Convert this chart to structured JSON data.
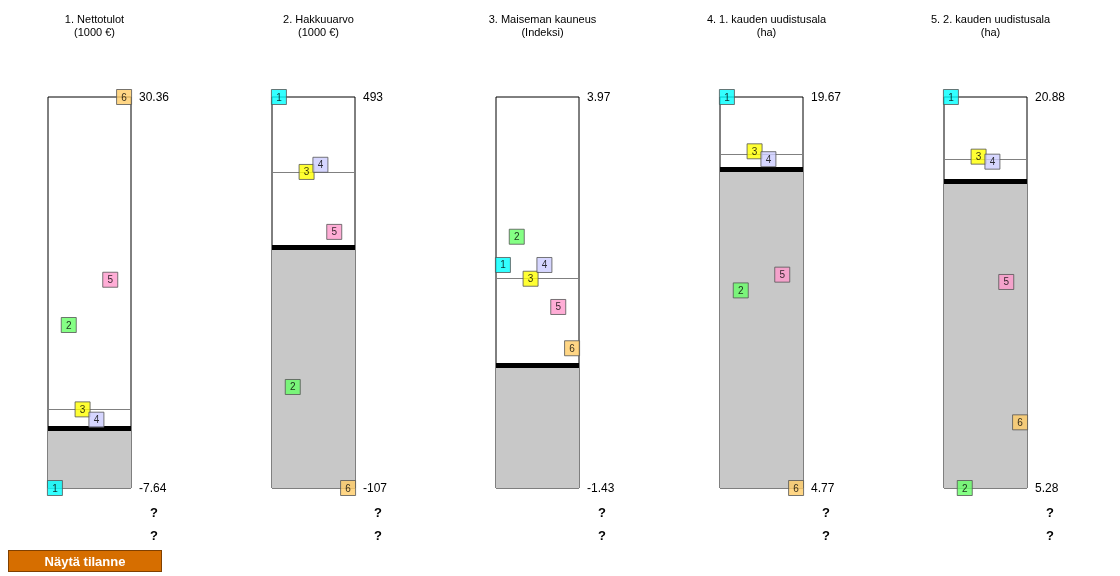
{
  "chart_data": [
    {
      "type": "scatter",
      "title": "1. Nettotulot",
      "subtitle": "(1000 €)",
      "categories": [
        null,
        null,
        null,
        null,
        null,
        null
      ],
      "marker": "square",
      "ylim": [
        -7.64,
        30.36
      ],
      "yticks": [
        -7.64,
        30.36
      ],
      "tick_labels": "y",
      "grid": false,
      "series": [
        {
          "name": "1",
          "color": "#00ffff",
          "values": [
            -7.64,
            null,
            null,
            null,
            null,
            null
          ]
        },
        {
          "name": "2",
          "color": "#66ff66",
          "values": [
            null,
            8.2,
            null,
            null,
            null,
            null
          ]
        },
        {
          "name": "3",
          "color": "#ffff00",
          "values": [
            null,
            null,
            0,
            null,
            null,
            null
          ]
        },
        {
          "name": "4",
          "color": "#ccccff",
          "values": [
            null,
            null,
            null,
            -1,
            null,
            null
          ]
        },
        {
          "name": "5",
          "color": "#ff99cc",
          "values": [
            null,
            null,
            null,
            null,
            12.6,
            null
          ]
        },
        {
          "name": "6",
          "color": "#ffcc66",
          "values": [
            null,
            null,
            null,
            null,
            null,
            30.36
          ]
        }
      ],
      "ref_lines": [
        {
          "axis": "y",
          "value": -1.8,
          "color": "#000000"
        },
        {
          "axis": "y",
          "value": 0,
          "color": "#808080"
        }
      ],
      "bands": [
        {
          "axis": "y",
          "from": -7.64,
          "to": -1.8,
          "color": "#c8c8c8"
        }
      ],
      "annotations": [
        "?",
        "?",
        "Näytä tilanne"
      ]
    },
    {
      "type": "scatter",
      "title": "2. Hakkuuarvo",
      "subtitle": "(1000 €)",
      "categories": [
        null,
        null,
        null,
        null,
        null,
        null
      ],
      "marker": "square",
      "ylim": [
        -107,
        493
      ],
      "yticks": [
        -107,
        493
      ],
      "tick_labels": "y",
      "grid": false,
      "series": [
        {
          "name": "1",
          "color": "#00ffff",
          "values": [
            493,
            null,
            null,
            null,
            null,
            null
          ]
        },
        {
          "name": "2",
          "color": "#66ff66",
          "values": [
            null,
            48,
            null,
            null,
            null,
            null
          ]
        },
        {
          "name": "3",
          "color": "#ffff00",
          "values": [
            null,
            null,
            378,
            null,
            null,
            null
          ]
        },
        {
          "name": "4",
          "color": "#ccccff",
          "values": [
            null,
            null,
            null,
            389,
            null,
            null
          ]
        },
        {
          "name": "5",
          "color": "#ff99cc",
          "values": [
            null,
            null,
            null,
            null,
            286,
            null
          ]
        },
        {
          "name": "6",
          "color": "#ffcc66",
          "values": [
            null,
            null,
            null,
            null,
            null,
            -107
          ]
        }
      ],
      "ref_lines": [
        {
          "axis": "y",
          "value": 263,
          "color": "#000000"
        },
        {
          "axis": "y",
          "value": 378,
          "color": "#808080"
        }
      ],
      "bands": [
        {
          "axis": "y",
          "from": -107,
          "to": 263,
          "color": "#c8c8c8"
        }
      ],
      "annotations": [
        "?",
        "?"
      ]
    },
    {
      "type": "scatter",
      "title": "3. Maiseman kauneus",
      "subtitle": "(Indeksi)",
      "categories": [
        null,
        null,
        null,
        null,
        null,
        null
      ],
      "marker": "square",
      "ylim": [
        -1.43,
        3.97
      ],
      "yticks": [
        -1.43,
        3.97
      ],
      "tick_labels": "y",
      "grid": false,
      "series": [
        {
          "name": "1",
          "color": "#00ffff",
          "values": [
            1.65,
            null,
            null,
            null,
            null,
            null
          ]
        },
        {
          "name": "2",
          "color": "#66ff66",
          "values": [
            null,
            2.04,
            null,
            null,
            null,
            null
          ]
        },
        {
          "name": "3",
          "color": "#ffff00",
          "values": [
            null,
            null,
            1.46,
            null,
            null,
            null
          ]
        },
        {
          "name": "4",
          "color": "#ccccff",
          "values": [
            null,
            null,
            null,
            1.65,
            null,
            null
          ]
        },
        {
          "name": "5",
          "color": "#ff99cc",
          "values": [
            null,
            null,
            null,
            null,
            1.07,
            null
          ]
        },
        {
          "name": "6",
          "color": "#ffcc66",
          "values": [
            null,
            null,
            null,
            null,
            null,
            0.5
          ]
        }
      ],
      "ref_lines": [
        {
          "axis": "y",
          "value": 0.26,
          "color": "#000000"
        },
        {
          "axis": "y",
          "value": 1.46,
          "color": "#808080"
        }
      ],
      "bands": [
        {
          "axis": "y",
          "from": -1.43,
          "to": 0.26,
          "color": "#c8c8c8"
        }
      ],
      "annotations": [
        "?",
        "?"
      ]
    },
    {
      "type": "scatter",
      "title": "4. 1. kauden uudistusala",
      "subtitle": "(ha)",
      "categories": [
        null,
        null,
        null,
        null,
        null,
        null
      ],
      "marker": "square",
      "ylim": [
        4.77,
        19.67
      ],
      "yticks": [
        4.77,
        19.67
      ],
      "tick_labels": "y",
      "grid": false,
      "series": [
        {
          "name": "1",
          "color": "#00ffff",
          "values": [
            19.67,
            null,
            null,
            null,
            null,
            null
          ]
        },
        {
          "name": "2",
          "color": "#66ff66",
          "values": [
            null,
            12.3,
            null,
            null,
            null,
            null
          ]
        },
        {
          "name": "3",
          "color": "#ffff00",
          "values": [
            null,
            null,
            17.6,
            null,
            null,
            null
          ]
        },
        {
          "name": "4",
          "color": "#ccccff",
          "values": [
            null,
            null,
            null,
            17.3,
            null,
            null
          ]
        },
        {
          "name": "5",
          "color": "#ff99cc",
          "values": [
            null,
            null,
            null,
            null,
            12.9,
            null
          ]
        },
        {
          "name": "6",
          "color": "#ffcc66",
          "values": [
            null,
            null,
            null,
            null,
            null,
            4.77
          ]
        }
      ],
      "ref_lines": [
        {
          "axis": "y",
          "value": 16.9,
          "color": "#000000"
        },
        {
          "axis": "y",
          "value": 17.5,
          "color": "#808080"
        }
      ],
      "bands": [
        {
          "axis": "y",
          "from": 4.77,
          "to": 16.9,
          "color": "#c8c8c8"
        }
      ],
      "annotations": [
        "?",
        "?"
      ]
    },
    {
      "type": "scatter",
      "title": "5. 2. kauden uudistusala",
      "subtitle": "(ha)",
      "categories": [
        null,
        null,
        null,
        null,
        null,
        null
      ],
      "marker": "square",
      "ylim": [
        5.28,
        20.88
      ],
      "yticks": [
        5.28,
        20.88
      ],
      "tick_labels": "y",
      "grid": false,
      "series": [
        {
          "name": "1",
          "color": "#00ffff",
          "values": [
            20.88,
            null,
            null,
            null,
            null,
            null
          ]
        },
        {
          "name": "2",
          "color": "#66ff66",
          "values": [
            null,
            5.28,
            null,
            null,
            null,
            null
          ]
        },
        {
          "name": "3",
          "color": "#ffff00",
          "values": [
            null,
            null,
            18.5,
            null,
            null,
            null
          ]
        },
        {
          "name": "4",
          "color": "#ccccff",
          "values": [
            null,
            null,
            null,
            18.3,
            null,
            null
          ]
        },
        {
          "name": "5",
          "color": "#ff99cc",
          "values": [
            null,
            null,
            null,
            null,
            13.5,
            null
          ]
        },
        {
          "name": "6",
          "color": "#ffcc66",
          "values": [
            null,
            null,
            null,
            null,
            null,
            7.9
          ]
        }
      ],
      "ref_lines": [
        {
          "axis": "y",
          "value": 17.5,
          "color": "#000000"
        },
        {
          "axis": "y",
          "value": 18.4,
          "color": "#808080"
        }
      ],
      "bands": [
        {
          "axis": "y",
          "from": 5.28,
          "to": 17.5,
          "color": "#c8c8c8"
        }
      ],
      "annotations": [
        "?",
        "?"
      ]
    }
  ]
}
